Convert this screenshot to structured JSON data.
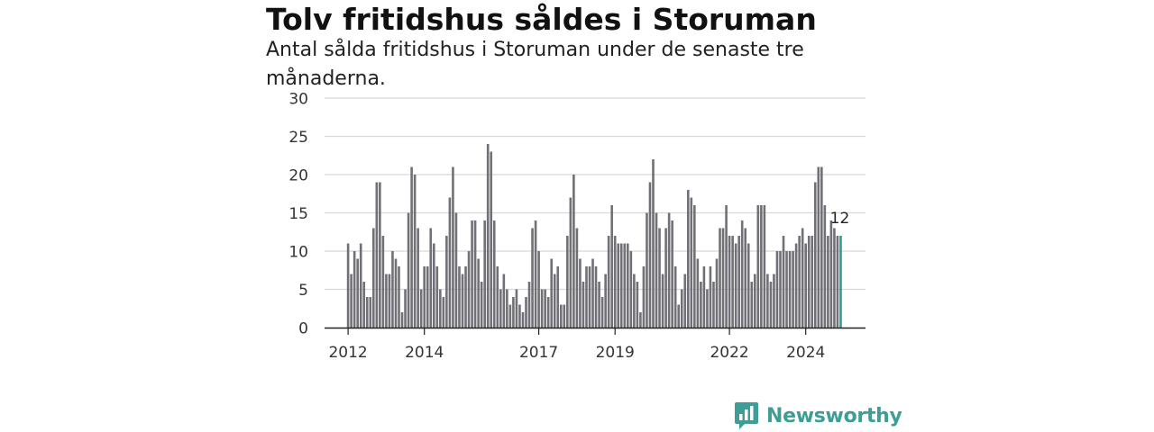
{
  "header": {
    "title": "Tolv fritidshus såldes i Storuman",
    "subtitle": "Antal sålda fritidshus i Storuman under de senaste tre månaderna."
  },
  "brand": {
    "name": "Newsworthy",
    "color": "#3e9e96"
  },
  "colors": {
    "bar": "#717076",
    "highlight": "#2a9d96",
    "grid": "#d8d8d8"
  },
  "chart_data": {
    "type": "bar",
    "title": "Tolv fritidshus såldes i Storuman",
    "subtitle": "Antal sålda fritidshus i Storuman under de senaste tre månaderna.",
    "xlabel": "",
    "ylabel": "",
    "ylim": [
      0,
      30
    ],
    "yticks": [
      0,
      5,
      10,
      15,
      20,
      25,
      30
    ],
    "xticks": [
      "2012",
      "2014",
      "2017",
      "2019",
      "2022",
      "2024"
    ],
    "grid": true,
    "series": [
      {
        "values": [
          11,
          7,
          10,
          9,
          11,
          6,
          4,
          4,
          13,
          19,
          19,
          12,
          7,
          7,
          10,
          9,
          8,
          2,
          5,
          15,
          21,
          20,
          13,
          5,
          8,
          8,
          13,
          11,
          8,
          5,
          4,
          12,
          17,
          21,
          15,
          8,
          7,
          8,
          10,
          14,
          14,
          9,
          6,
          14,
          24,
          23,
          14,
          8,
          5,
          7,
          5,
          3,
          4,
          5,
          3,
          2,
          4,
          6,
          13,
          14,
          10,
          5,
          5,
          4,
          9,
          7,
          8,
          3,
          3,
          12,
          17,
          20,
          13,
          9,
          6,
          8,
          8,
          9,
          8,
          6,
          4,
          7,
          12,
          16,
          12,
          11,
          11,
          11,
          11,
          10,
          7,
          6,
          2,
          8,
          15,
          19,
          22,
          15,
          13,
          7,
          13,
          15,
          14,
          8,
          3,
          5,
          7,
          18,
          17,
          16,
          9,
          6,
          8,
          5,
          8,
          6,
          9,
          13,
          13,
          16,
          12,
          12,
          11,
          12,
          14,
          13,
          11,
          6,
          7,
          16,
          16,
          16,
          7,
          6,
          7,
          10,
          10,
          12,
          10,
          10,
          10,
          11,
          12,
          13,
          11,
          12,
          12,
          19,
          21,
          21,
          16,
          12,
          14,
          13,
          12,
          12
        ]
      }
    ],
    "annotation": {
      "label": "12",
      "index": 155
    }
  }
}
